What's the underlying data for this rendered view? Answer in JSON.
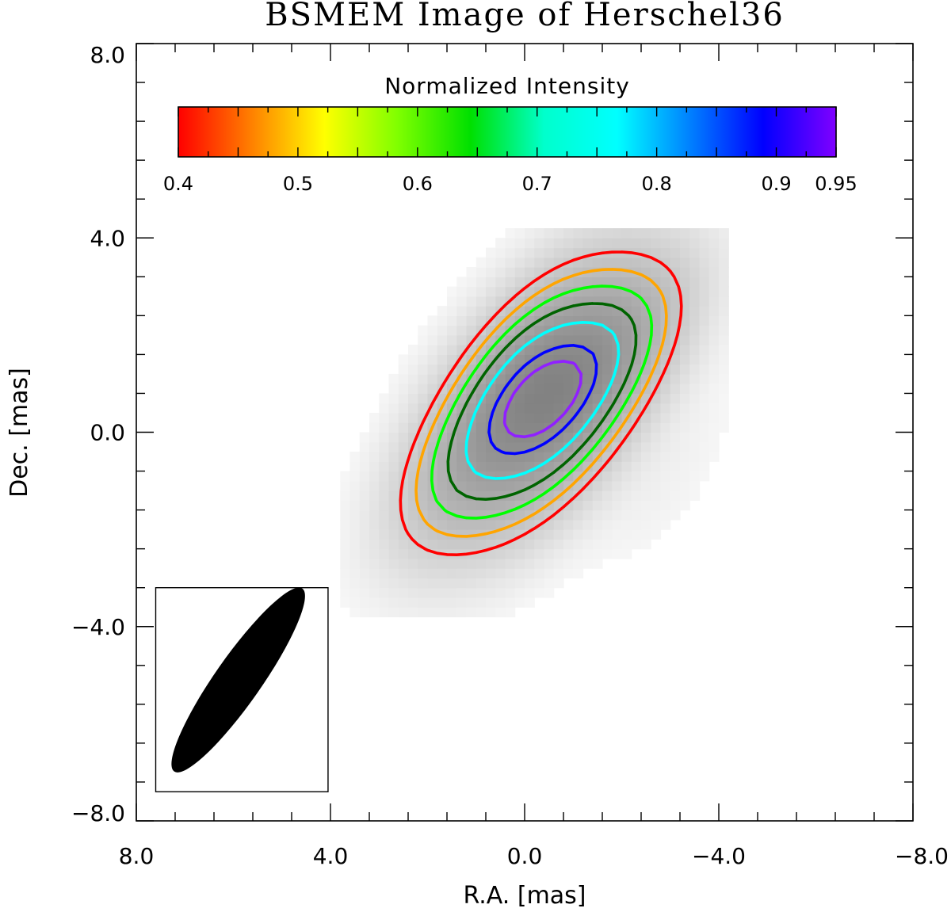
{
  "chart_data": {
    "type": "heatmap",
    "title": "BSMEM Image of Herschel36",
    "xlabel": "R.A. [mas]",
    "ylabel": "Dec. [mas]",
    "xlim": [
      8.0,
      -8.0
    ],
    "ylim": [
      -8.0,
      8.0
    ],
    "x_tick_labels": [
      "8.0",
      "4.0",
      "0.0",
      "−4.0",
      "−8.0"
    ],
    "x_tick_values": [
      8.0,
      4.0,
      0.0,
      -4.0,
      -8.0
    ],
    "y_tick_labels": [
      "8.0",
      "4.0",
      "0.0",
      "−4.0",
      "−8.0"
    ],
    "y_tick_values": [
      8.0,
      4.0,
      0.0,
      -4.0,
      -8.0
    ],
    "minor_tick_step": 0.8,
    "colorbar": {
      "title": "Normalized Intensity",
      "tick_labels": [
        "0.4",
        "0.5",
        "0.6",
        "0.7",
        "0.8",
        "0.9",
        "0.95"
      ],
      "tick_values": [
        0.4,
        0.5,
        0.6,
        0.7,
        0.8,
        0.9,
        0.95
      ],
      "range": [
        0.4,
        0.95
      ],
      "colormap": [
        "#ff0000",
        "#ff8000",
        "#ffff00",
        "#80ff00",
        "#00e000",
        "#00ffcc",
        "#00ffff",
        "#0080ff",
        "#0000ff",
        "#8000ff"
      ]
    },
    "grayscale_image": {
      "extent_x": [
        3.8,
        -4.2
      ],
      "extent_y": [
        -3.8,
        4.2
      ],
      "components": [
        {
          "x": 0.35,
          "y": 1.1,
          "sigma_major": 2.3,
          "sigma_minor": 0.95,
          "pa_deg": 35,
          "amp": 1.0
        },
        {
          "x": -1.0,
          "y": 0.2,
          "sigma_major": 2.3,
          "sigma_minor": 0.95,
          "pa_deg": 35,
          "amp": 0.98
        },
        {
          "x": 1.8,
          "y": -1.6,
          "sigma_major": 1.6,
          "sigma_minor": 1.0,
          "pa_deg": 35,
          "amp": 0.3
        },
        {
          "x": -2.4,
          "y": 2.5,
          "sigma_major": 1.6,
          "sigma_minor": 1.0,
          "pa_deg": 35,
          "amp": 0.3
        },
        {
          "x": -3.0,
          "y": -1.3,
          "sigma_major": 1.8,
          "sigma_minor": 0.6,
          "pa_deg": 35,
          "amp": 0.12
        }
      ]
    },
    "contour_levels": [
      {
        "level": 0.4,
        "color": "#ff0000"
      },
      {
        "level": 0.5,
        "color": "#ffa500"
      },
      {
        "level": 0.6,
        "color": "#00ff00"
      },
      {
        "level": 0.7,
        "color": "#006400"
      },
      {
        "level": 0.8,
        "color": "#00ffff"
      },
      {
        "level": 0.9,
        "color": "#0000ff"
      },
      {
        "level": 0.95,
        "color": "#9020ff"
      }
    ],
    "beam": {
      "center_x": 5.9,
      "center_y": -5.1,
      "major_mas": 4.6,
      "minor_mas": 0.95,
      "pa_deg": 35,
      "box_x": [
        7.6,
        4.05
      ],
      "box_y": [
        -7.4,
        -3.2
      ],
      "color": "#000000"
    }
  }
}
